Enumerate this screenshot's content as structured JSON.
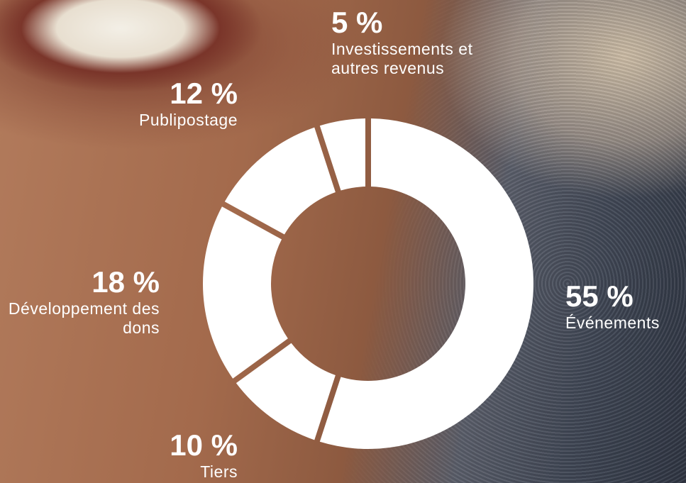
{
  "chart_data": {
    "type": "donut",
    "categories": [
      "Événements",
      "Tiers",
      "Développement des dons",
      "Publipostage",
      "Investissements et autres revenus"
    ],
    "values": [
      55,
      10,
      18,
      12,
      5
    ],
    "value_labels": [
      "55 %",
      "10 %",
      "18 %",
      "12 %",
      "5 %"
    ],
    "color": "#ffffff"
  }
}
